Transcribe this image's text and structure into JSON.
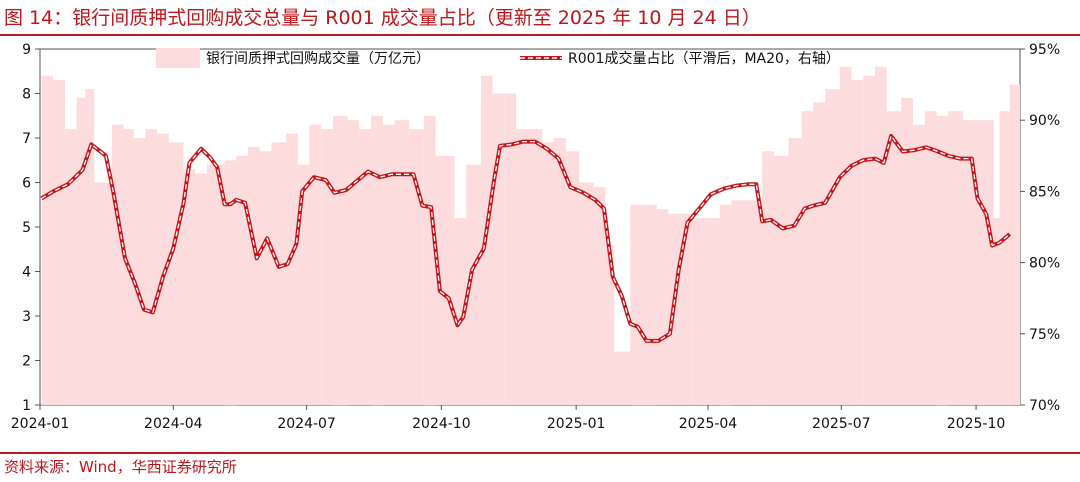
{
  "header": {
    "title": "图 14：银行间质押式回购成交总量与 R001 成交量占比（更新至 2025 年 10 月 24 日）"
  },
  "footer": {
    "source": "资料来源：Wind，华西证券研究所"
  },
  "colors": {
    "accent": "#c0161b",
    "bar": "#fcdcdc",
    "line_outer": "#c8141b",
    "line_inner": "#ffffff"
  },
  "chart_data": {
    "type": "area",
    "title": "",
    "x_ticks": [
      "2024-01",
      "2024-04",
      "2024-07",
      "2024-10",
      "2025-01",
      "2025-04",
      "2025-07",
      "2025-10"
    ],
    "y_left": {
      "ylim": [
        1,
        9
      ],
      "ticks": [
        "1",
        "2",
        "3",
        "4",
        "5",
        "6",
        "7",
        "8",
        "9"
      ]
    },
    "y_right": {
      "ylim": [
        70,
        95
      ],
      "ticks": [
        "70%",
        "75%",
        "80%",
        "85%",
        "90%",
        "95%"
      ]
    },
    "legend_position": "top",
    "series": [
      {
        "name": "银行间质押式回购成交量（万亿元）",
        "type": "bar",
        "axis": "left",
        "x": [
          "2024-01-02",
          "2024-01-10",
          "2024-01-18",
          "2024-01-26",
          "2024-02-01",
          "2024-02-07",
          "2024-02-19",
          "2024-02-27",
          "2024-03-05",
          "2024-03-13",
          "2024-03-21",
          "2024-03-29",
          "2024-04-08",
          "2024-04-16",
          "2024-04-24",
          "2024-05-06",
          "2024-05-14",
          "2024-05-22",
          "2024-05-30",
          "2024-06-07",
          "2024-06-17",
          "2024-06-25",
          "2024-07-03",
          "2024-07-11",
          "2024-07-19",
          "2024-07-29",
          "2024-08-06",
          "2024-08-14",
          "2024-08-22",
          "2024-08-30",
          "2024-09-09",
          "2024-09-19",
          "2024-09-27",
          "2024-10-10",
          "2024-10-18",
          "2024-10-28",
          "2024-11-05",
          "2024-11-13",
          "2024-11-21",
          "2024-11-29",
          "2024-12-09",
          "2024-12-17",
          "2024-12-25",
          "2025-01-03",
          "2025-01-13",
          "2025-01-21",
          "2025-01-27",
          "2025-02-07",
          "2025-02-17",
          "2025-02-25",
          "2025-03-05",
          "2025-03-13",
          "2025-03-21",
          "2025-03-31",
          "2025-04-09",
          "2025-04-17",
          "2025-04-25",
          "2025-05-08",
          "2025-05-16",
          "2025-05-26",
          "2025-06-04",
          "2025-06-12",
          "2025-06-20",
          "2025-06-30",
          "2025-07-08",
          "2025-07-16",
          "2025-07-24",
          "2025-08-01",
          "2025-08-11",
          "2025-08-19",
          "2025-08-27",
          "2025-09-04",
          "2025-09-12",
          "2025-09-22",
          "2025-09-30",
          "2025-10-13",
          "2025-10-17",
          "2025-10-24"
        ],
        "values": [
          8.4,
          8.3,
          7.2,
          7.9,
          8.1,
          6.0,
          7.3,
          7.2,
          7.0,
          7.2,
          7.1,
          6.9,
          6.3,
          6.2,
          6.4,
          6.5,
          6.6,
          6.8,
          6.7,
          6.9,
          7.1,
          6.4,
          7.3,
          7.2,
          7.5,
          7.4,
          7.2,
          7.5,
          7.3,
          7.4,
          7.2,
          7.5,
          6.6,
          5.2,
          6.4,
          8.4,
          8.0,
          8.0,
          7.2,
          7.2,
          6.9,
          7.0,
          6.7,
          6.0,
          5.9,
          4.6,
          2.2,
          5.5,
          5.5,
          5.4,
          5.3,
          5.3,
          5.2,
          5.2,
          5.5,
          5.6,
          5.6,
          6.7,
          6.6,
          7.0,
          7.6,
          7.8,
          8.1,
          8.6,
          8.3,
          8.4,
          8.6,
          7.6,
          7.9,
          7.3,
          7.6,
          7.5,
          7.6,
          7.4,
          7.4,
          5.2,
          7.6,
          8.2
        ]
      },
      {
        "name": "R001成交量占比（平滑后，MA20，右轴）",
        "type": "line",
        "axis": "right",
        "x": [
          "2024-01-02",
          "2024-01-10",
          "2024-01-20",
          "2024-01-30",
          "2024-02-05",
          "2024-02-10",
          "2024-02-15",
          "2024-02-20",
          "2024-02-28",
          "2024-03-06",
          "2024-03-12",
          "2024-03-18",
          "2024-03-25",
          "2024-04-01",
          "2024-04-08",
          "2024-04-12",
          "2024-04-20",
          "2024-04-26",
          "2024-05-01",
          "2024-05-06",
          "2024-05-10",
          "2024-05-14",
          "2024-05-20",
          "2024-05-28",
          "2024-06-04",
          "2024-06-12",
          "2024-06-18",
          "2024-06-24",
          "2024-06-28",
          "2024-07-06",
          "2024-07-14",
          "2024-07-20",
          "2024-07-28",
          "2024-08-05",
          "2024-08-12",
          "2024-08-20",
          "2024-08-28",
          "2024-09-05",
          "2024-09-12",
          "2024-09-18",
          "2024-09-24",
          "2024-09-30",
          "2024-10-06",
          "2024-10-12",
          "2024-10-16",
          "2024-10-22",
          "2024-10-30",
          "2024-11-06",
          "2024-11-10",
          "2024-11-18",
          "2024-11-26",
          "2024-12-04",
          "2024-12-12",
          "2024-12-20",
          "2024-12-28",
          "2025-01-06",
          "2025-01-14",
          "2025-01-20",
          "2025-01-26",
          "2025-02-01",
          "2025-02-07",
          "2025-02-12",
          "2025-02-18",
          "2025-02-26",
          "2025-03-06",
          "2025-03-12",
          "2025-03-18",
          "2025-03-26",
          "2025-04-03",
          "2025-04-12",
          "2025-04-20",
          "2025-04-28",
          "2025-05-04",
          "2025-05-08",
          "2025-05-14",
          "2025-05-22",
          "2025-05-30",
          "2025-06-06",
          "2025-06-12",
          "2025-06-20",
          "2025-06-30",
          "2025-07-08",
          "2025-07-16",
          "2025-07-24",
          "2025-07-30",
          "2025-08-04",
          "2025-08-12",
          "2025-08-20",
          "2025-08-28",
          "2025-09-05",
          "2025-09-12",
          "2025-09-20",
          "2025-09-28",
          "2025-10-02",
          "2025-10-08",
          "2025-10-12",
          "2025-10-17",
          "2025-10-24"
        ],
        "values": [
          84.5,
          85.0,
          85.5,
          86.5,
          88.3,
          87.9,
          87.5,
          85.0,
          80.3,
          78.5,
          76.7,
          76.5,
          79.0,
          81.0,
          84.2,
          87.0,
          88.0,
          87.4,
          86.7,
          84.1,
          84.1,
          84.4,
          84.2,
          80.3,
          81.7,
          79.7,
          79.9,
          81.3,
          85.0,
          86.0,
          85.8,
          84.9,
          85.1,
          85.8,
          86.4,
          86.0,
          86.2,
          86.2,
          86.2,
          84.0,
          83.9,
          78.0,
          77.5,
          75.6,
          76.2,
          79.5,
          81.0,
          85.8,
          88.2,
          88.3,
          88.5,
          88.5,
          88.0,
          87.3,
          85.3,
          84.9,
          84.4,
          83.8,
          79.0,
          77.7,
          75.7,
          75.5,
          74.5,
          74.5,
          75.0,
          79.5,
          82.8,
          83.8,
          84.8,
          85.2,
          85.4,
          85.5,
          85.5,
          82.9,
          83.0,
          82.4,
          82.6,
          83.8,
          84.0,
          84.2,
          86.0,
          86.8,
          87.2,
          87.3,
          87.0,
          88.9,
          87.8,
          87.9,
          88.1,
          87.8,
          87.5,
          87.3,
          87.3,
          84.5,
          83.4,
          81.2,
          81.4,
          82.0
        ]
      }
    ]
  }
}
